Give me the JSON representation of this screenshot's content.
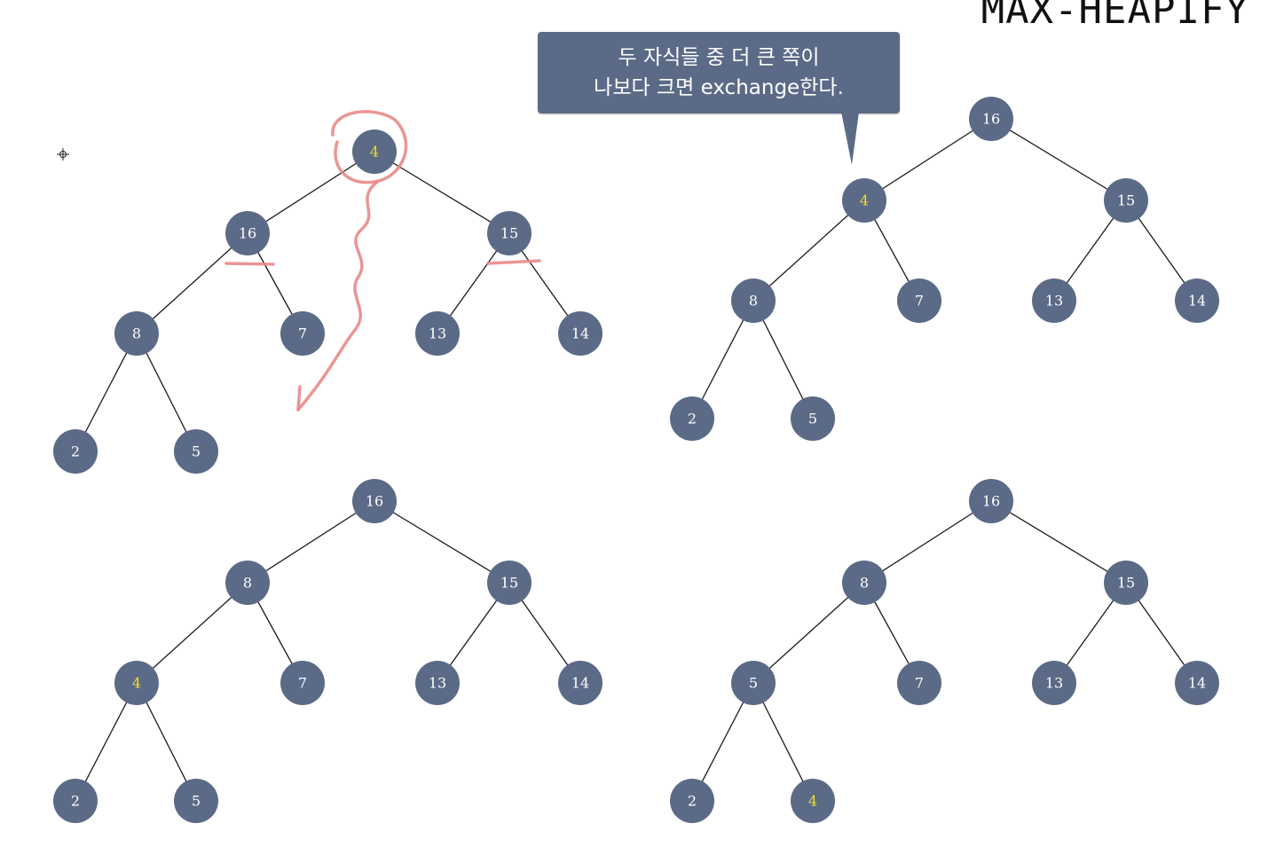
{
  "title": "MAX-HEAPIFY",
  "callout": {
    "line1": "두 자식들 중 더 큰 쪽이",
    "line2": "나보다 크면 exchange한다."
  },
  "colors": {
    "node": "#5b6a86",
    "label": "#ffffff",
    "highlight": "#f2dd2a",
    "annotation": "#e98a8a"
  },
  "trees": [
    {
      "name": "tree-step-1",
      "heap": [
        4,
        16,
        15,
        8,
        7,
        13,
        14,
        2,
        5
      ],
      "highlight": 0
    },
    {
      "name": "tree-step-2",
      "heap": [
        16,
        4,
        15,
        8,
        7,
        13,
        14,
        2,
        5
      ],
      "highlight": 1
    },
    {
      "name": "tree-step-3",
      "heap": [
        16,
        8,
        15,
        4,
        7,
        13,
        14,
        2,
        5
      ],
      "highlight": 3
    },
    {
      "name": "tree-step-4",
      "heap": [
        16,
        8,
        15,
        5,
        7,
        13,
        14,
        2,
        4
      ],
      "highlight": 8
    }
  ]
}
